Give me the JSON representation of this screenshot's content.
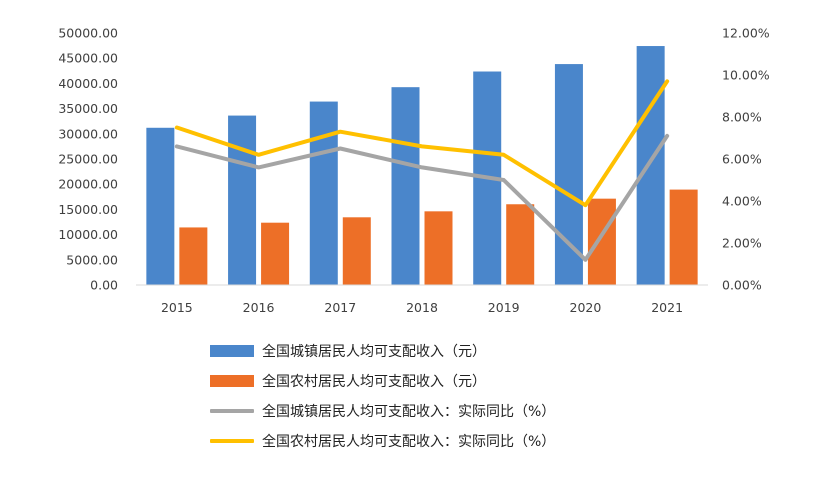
{
  "chart_data": {
    "type": "bar",
    "categories": [
      "2015",
      "2016",
      "2017",
      "2018",
      "2019",
      "2020",
      "2021"
    ],
    "left_axis": {
      "min": 0,
      "max": 50000,
      "step": 5000,
      "tick_labels": [
        "0.00",
        "5000.00",
        "10000.00",
        "15000.00",
        "20000.00",
        "25000.00",
        "30000.00",
        "35000.00",
        "40000.00",
        "45000.00",
        "50000.00"
      ]
    },
    "right_axis": {
      "min": 0,
      "max": 12,
      "step": 2,
      "tick_labels": [
        "0.00%",
        "2.00%",
        "4.00%",
        "6.00%",
        "8.00%",
        "10.00%",
        "12.00%"
      ]
    },
    "series": [
      {
        "name": "全国城镇居民人均可支配收入（元）",
        "kind": "bar",
        "axis": "left",
        "color": "#4a86cb",
        "values": [
          31195,
          33616,
          36396,
          39251,
          42359,
          43834,
          47412
        ]
      },
      {
        "name": "全国农村居民人均可支配收入（元）",
        "kind": "bar",
        "axis": "left",
        "color": "#ed6f27",
        "values": [
          11422,
          12363,
          13432,
          14617,
          16021,
          17131,
          18931
        ]
      },
      {
        "name": "全国城镇居民人均可支配收入：实际同比（%）",
        "kind": "line",
        "axis": "right",
        "color": "#a5a5a5",
        "values": [
          6.6,
          5.6,
          6.5,
          5.6,
          5.0,
          1.2,
          7.1
        ]
      },
      {
        "name": "全国农村居民人均可支配收入：实际同比（%）",
        "kind": "line",
        "axis": "right",
        "color": "#ffc000",
        "values": [
          7.5,
          6.2,
          7.3,
          6.6,
          6.2,
          3.8,
          9.7
        ]
      }
    ],
    "legend": [
      {
        "label": "全国城镇居民人均可支配收入（元）",
        "shape": "bar",
        "color": "#4a86cb"
      },
      {
        "label": "全国农村居民人均可支配收入（元）",
        "shape": "bar",
        "color": "#ed6f27"
      },
      {
        "label": "全国城镇居民人均可支配收入：实际同比（%）",
        "shape": "line",
        "color": "#a5a5a5"
      },
      {
        "label": "全国农村居民人均可支配收入：实际同比（%）",
        "shape": "line",
        "color": "#ffc000"
      }
    ],
    "legend_position": "bottom",
    "grid": false
  }
}
